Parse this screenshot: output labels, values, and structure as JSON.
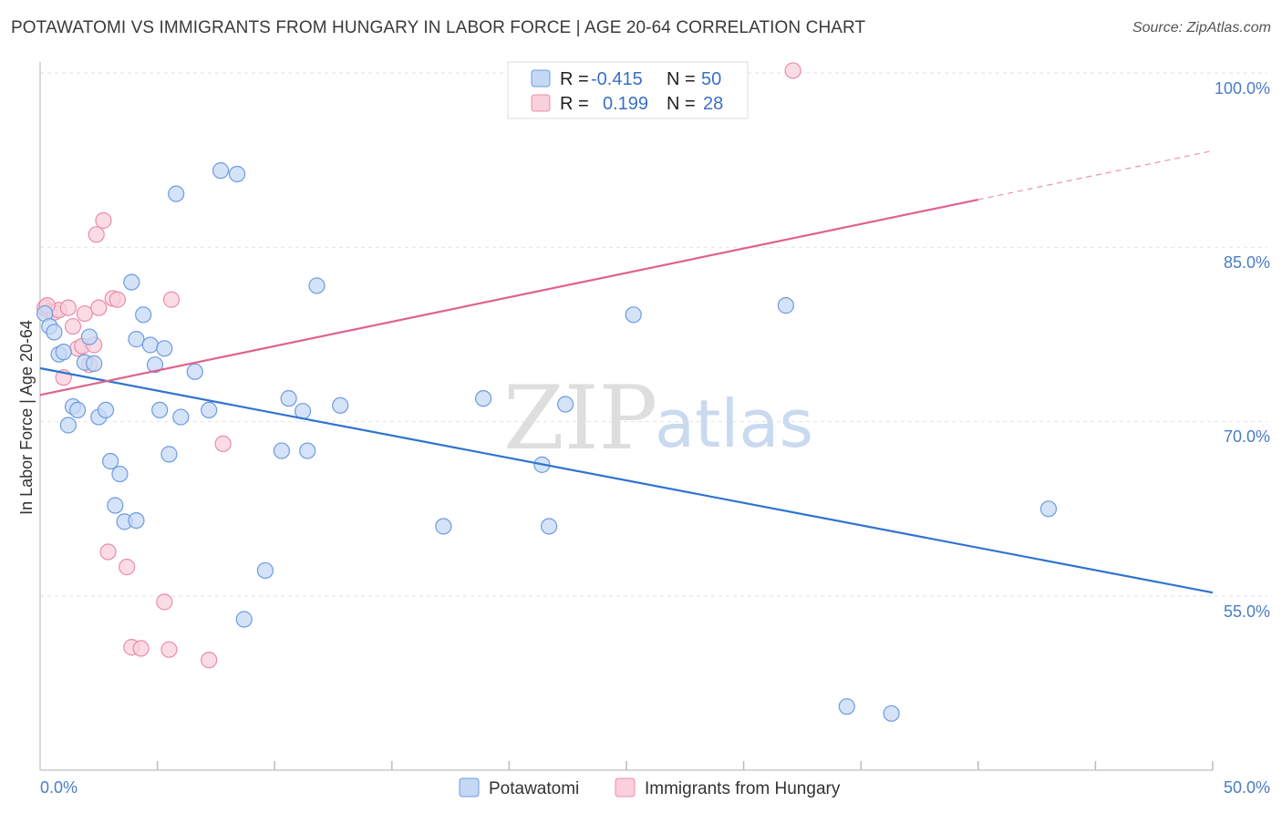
{
  "chart_data": {
    "type": "scatter",
    "title": "POTAWATOMI VS IMMIGRANTS FROM HUNGARY IN LABOR FORCE | AGE 20-64 CORRELATION CHART",
    "source": "Source: ZipAtlas.com",
    "ylabel": "In Labor Force | Age 20-64",
    "xlim": [
      0,
      50
    ],
    "ylim": [
      40,
      102
    ],
    "x_tick_labels": [
      "0.0%",
      "50.0%"
    ],
    "y_ticks": [
      55,
      70,
      85,
      100
    ],
    "y_tick_labels": [
      "55.0%",
      "70.0%",
      "85.0%",
      "100.0%"
    ],
    "watermark": {
      "zip": "ZIP",
      "atlas": "atlas"
    },
    "colors": {
      "series1_fill": "#c5d9f5",
      "series1_stroke": "#6d9be0",
      "series1_line": "#2e73d0",
      "series2_fill": "#f9d0dc",
      "series2_stroke": "#ea8ca8",
      "series2_line": "#e0628c",
      "tick_text": "#4a7cc4"
    },
    "legend": {
      "rows": [
        {
          "r_label": "R =",
          "r_value": "-0.415",
          "n_label": "N =",
          "n_value": "50"
        },
        {
          "r_label": "R =",
          "r_value": "0.199",
          "n_label": "N =",
          "n_value": "28"
        }
      ]
    },
    "series": [
      {
        "name": "Potawatomi",
        "trend": {
          "x0": 0,
          "y0": 74.6,
          "x1": 50,
          "y1": 55.3
        },
        "points": [
          [
            0.2,
            79.3
          ],
          [
            0.4,
            78.2
          ],
          [
            0.6,
            77.7
          ],
          [
            0.8,
            75.8
          ],
          [
            1.0,
            76.0
          ],
          [
            1.2,
            69.7
          ],
          [
            1.4,
            71.3
          ],
          [
            1.6,
            71.0
          ],
          [
            1.9,
            75.1
          ],
          [
            2.1,
            77.3
          ],
          [
            2.3,
            75.0
          ],
          [
            2.5,
            70.4
          ],
          [
            2.8,
            71.0
          ],
          [
            3.0,
            66.6
          ],
          [
            3.2,
            62.8
          ],
          [
            3.4,
            65.5
          ],
          [
            3.6,
            61.4
          ],
          [
            3.9,
            82.0
          ],
          [
            4.1,
            61.5
          ],
          [
            4.1,
            77.1
          ],
          [
            4.4,
            79.2
          ],
          [
            4.7,
            76.6
          ],
          [
            4.9,
            74.9
          ],
          [
            5.1,
            71.0
          ],
          [
            5.3,
            76.3
          ],
          [
            5.5,
            67.2
          ],
          [
            5.8,
            89.6
          ],
          [
            6.0,
            70.4
          ],
          [
            6.6,
            74.3
          ],
          [
            7.2,
            71.0
          ],
          [
            7.7,
            91.6
          ],
          [
            8.4,
            91.3
          ],
          [
            8.7,
            53.0
          ],
          [
            9.6,
            57.2
          ],
          [
            10.3,
            67.5
          ],
          [
            10.6,
            72.0
          ],
          [
            11.2,
            70.9
          ],
          [
            11.4,
            67.5
          ],
          [
            11.8,
            81.7
          ],
          [
            12.8,
            71.4
          ],
          [
            17.2,
            61.0
          ],
          [
            18.9,
            72.0
          ],
          [
            21.4,
            66.3
          ],
          [
            21.7,
            61.0
          ],
          [
            22.4,
            71.5
          ],
          [
            25.3,
            79.2
          ],
          [
            31.8,
            80.0
          ],
          [
            34.4,
            45.5
          ],
          [
            36.3,
            44.9
          ],
          [
            43.0,
            62.5
          ]
        ]
      },
      {
        "name": "Immigrants from Hungary",
        "trend": {
          "x0": 0,
          "y0": 72.3,
          "x1": 40,
          "y1": 89.1
        },
        "trend_dashed": {
          "x0": 40,
          "y0": 89.1,
          "x1": 50,
          "y1": 93.3
        },
        "points": [
          [
            0.2,
            79.8
          ],
          [
            0.4,
            79.5
          ],
          [
            0.6,
            79.4
          ],
          [
            0.8,
            79.6
          ],
          [
            1.0,
            73.8
          ],
          [
            1.2,
            79.8
          ],
          [
            1.4,
            78.2
          ],
          [
            1.6,
            76.3
          ],
          [
            1.8,
            76.5
          ],
          [
            1.9,
            79.3
          ],
          [
            2.1,
            74.9
          ],
          [
            2.3,
            76.6
          ],
          [
            2.4,
            86.1
          ],
          [
            2.5,
            79.8
          ],
          [
            2.7,
            87.3
          ],
          [
            2.9,
            58.8
          ],
          [
            3.1,
            80.6
          ],
          [
            3.3,
            80.5
          ],
          [
            3.7,
            57.5
          ],
          [
            3.9,
            50.6
          ],
          [
            4.3,
            50.5
          ],
          [
            5.3,
            54.5
          ],
          [
            5.5,
            50.4
          ],
          [
            5.6,
            80.5
          ],
          [
            7.2,
            49.5
          ],
          [
            7.8,
            68.1
          ],
          [
            32.1,
            100.2
          ],
          [
            0.3,
            80.0
          ]
        ]
      }
    ]
  }
}
